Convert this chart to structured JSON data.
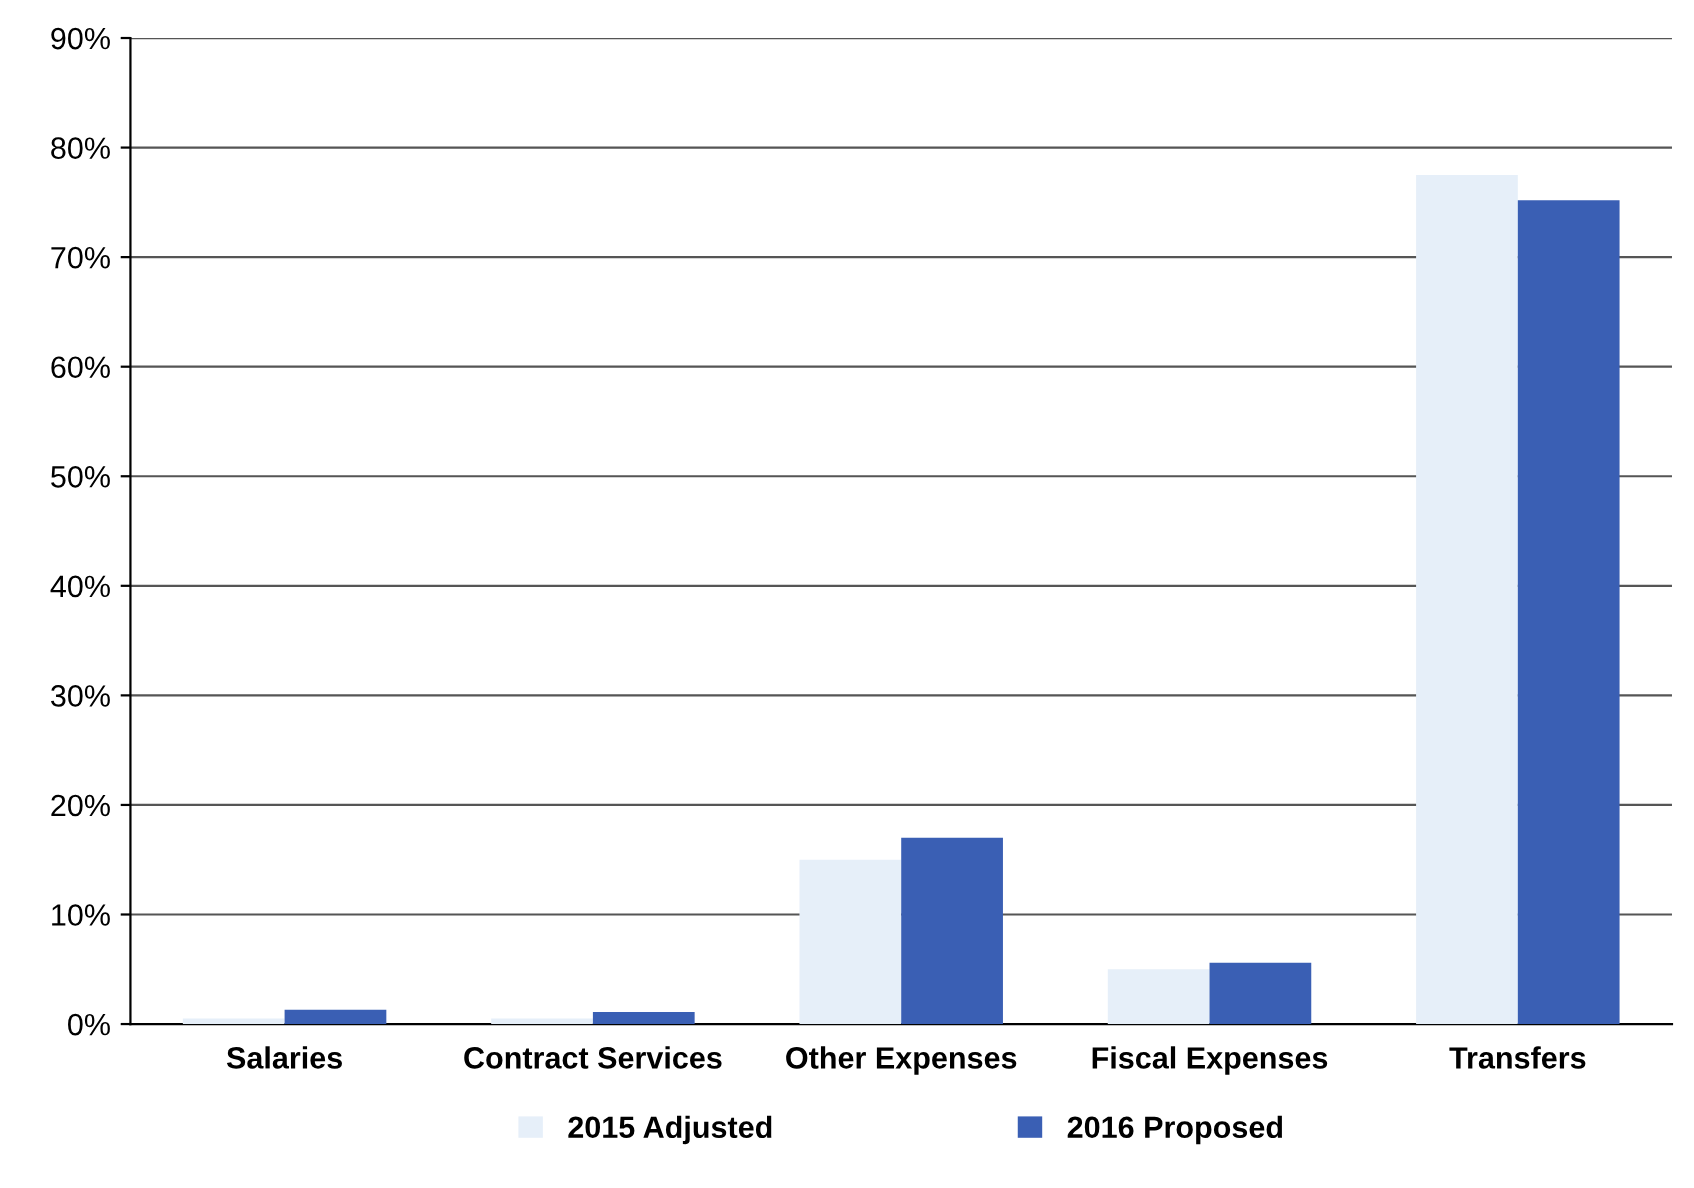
{
  "chart_data": {
    "type": "bar",
    "categories": [
      "Salaries",
      "Contract Services",
      "Other Expenses",
      "Fiscal Expenses",
      "Transfers"
    ],
    "series": [
      {
        "name": "2015 Adjusted",
        "color": "#e6eff9",
        "values": [
          0.5,
          0.5,
          15,
          5,
          77.5
        ]
      },
      {
        "name": "2016 Proposed",
        "color": "#3a5fb4",
        "values": [
          1.3,
          1.1,
          17,
          5.6,
          75.2
        ]
      }
    ],
    "ylim": [
      0,
      90
    ],
    "yticks": [
      {
        "value": 0,
        "label": "0%"
      },
      {
        "value": 10,
        "label": "10%"
      },
      {
        "value": 20,
        "label": "20%"
      },
      {
        "value": 30,
        "label": "30%"
      },
      {
        "value": 40,
        "label": "40%"
      },
      {
        "value": 50,
        "label": "50%"
      },
      {
        "value": 60,
        "label": "60%"
      },
      {
        "value": 70,
        "label": "70%"
      },
      {
        "value": 80,
        "label": "80%"
      },
      {
        "value": 90,
        "label": "90%"
      }
    ],
    "grid": "y",
    "legend": "bottom"
  }
}
